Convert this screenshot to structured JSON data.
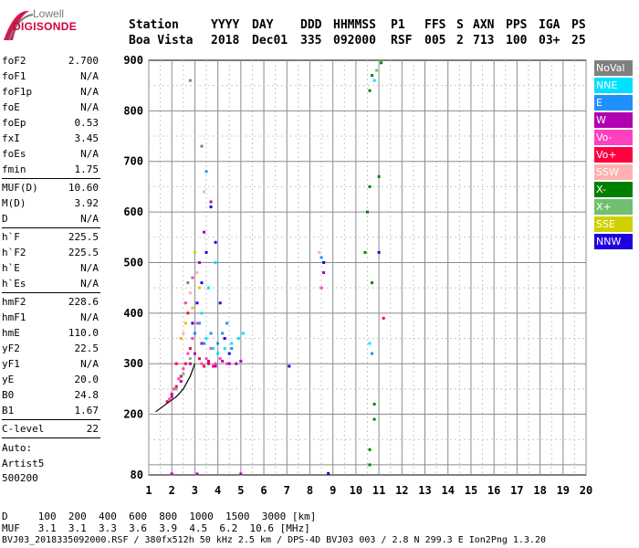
{
  "logo": {
    "brand_top": "Lowell",
    "brand_bottom": "DIGISONDE"
  },
  "header": {
    "columns": [
      {
        "label": "Station",
        "value": "Boa Vista"
      },
      {
        "label": "YYYY",
        "value": "2018"
      },
      {
        "label": "DAY",
        "value": "Dec01"
      },
      {
        "label": "DDD",
        "value": "335"
      },
      {
        "label": "HHMMSS",
        "value": "092000"
      },
      {
        "label": "P1",
        "value": "RSF"
      },
      {
        "label": "FFS",
        "value": "005"
      },
      {
        "label": "S",
        "value": "2"
      },
      {
        "label": "AXN",
        "value": "713"
      },
      {
        "label": "PPS",
        "value": "100"
      },
      {
        "label": "IGA",
        "value": "03+"
      },
      {
        "label": "PS",
        "value": "25"
      }
    ]
  },
  "parameters": {
    "group1": [
      {
        "name": "foF2",
        "value": "2.700"
      },
      {
        "name": "foF1",
        "value": "N/A"
      },
      {
        "name": "foF1p",
        "value": "N/A"
      },
      {
        "name": "foE",
        "value": "N/A"
      },
      {
        "name": "foEp",
        "value": "0.53"
      },
      {
        "name": "fxI",
        "value": "3.45"
      },
      {
        "name": "foEs",
        "value": "N/A"
      },
      {
        "name": "fmin",
        "value": "1.75"
      }
    ],
    "group2": [
      {
        "name": "MUF(D)",
        "value": "10.60"
      },
      {
        "name": "M(D)",
        "value": "3.92"
      },
      {
        "name": "D",
        "value": "N/A"
      }
    ],
    "group3": [
      {
        "name": "h`F",
        "value": "225.5"
      },
      {
        "name": "h`F2",
        "value": "225.5"
      },
      {
        "name": "h`E",
        "value": "N/A"
      },
      {
        "name": "h`Es",
        "value": "N/A"
      }
    ],
    "group4": [
      {
        "name": "hmF2",
        "value": "228.6"
      },
      {
        "name": "hmF1",
        "value": "N/A"
      },
      {
        "name": "hmE",
        "value": "110.0"
      },
      {
        "name": "yF2",
        "value": "22.5"
      },
      {
        "name": "yF1",
        "value": "N/A"
      },
      {
        "name": "yE",
        "value": "20.0"
      },
      {
        "name": "B0",
        "value": "24.8"
      },
      {
        "name": "B1",
        "value": "1.67"
      }
    ],
    "group5": [
      {
        "name": "C-level",
        "value": "22"
      }
    ]
  },
  "autoscaling": {
    "line1": "Auto:",
    "line2": "Artist5",
    "line3": "500200"
  },
  "legend": [
    {
      "label": "NoVal",
      "color": "#808080"
    },
    {
      "label": "NNE",
      "color": "#00e0ff"
    },
    {
      "label": "E",
      "color": "#1e90ff"
    },
    {
      "label": "W",
      "color": "#b000b0"
    },
    {
      "label": "Vo-",
      "color": "#ff40c0"
    },
    {
      "label": "Vo+",
      "color": "#ff0040"
    },
    {
      "label": "SSW",
      "color": "#ffb0b0"
    },
    {
      "label": "X-",
      "color": "#008000"
    },
    {
      "label": "X+",
      "color": "#70c070"
    },
    {
      "label": "SSE",
      "color": "#d0d000"
    },
    {
      "label": "NNW",
      "color": "#2000e0"
    }
  ],
  "chart_data": {
    "type": "scatter",
    "xlim": [
      1,
      20
    ],
    "ylim": [
      80,
      900
    ],
    "x_ticks": [
      "1",
      "2",
      "3",
      "4",
      "5",
      "6",
      "7",
      "8",
      "9",
      "10",
      "11",
      "12",
      "13",
      "14",
      "15",
      "16",
      "17",
      "18",
      "19",
      "20"
    ],
    "y_ticks": [
      "80",
      "200",
      "300",
      "400",
      "500",
      "600",
      "700",
      "800",
      "900"
    ],
    "grid": true,
    "legend_position": "right",
    "series": [
      {
        "name": "Vo-",
        "color": "#ff40c0",
        "points": [
          [
            1.9,
            230
          ],
          [
            2.1,
            250
          ],
          [
            2.3,
            270
          ],
          [
            2.5,
            290
          ],
          [
            2.7,
            320
          ],
          [
            2.9,
            350
          ],
          [
            3.1,
            380
          ],
          [
            3.3,
            300
          ],
          [
            3.5,
            310
          ],
          [
            3.7,
            330
          ],
          [
            3.9,
            300
          ],
          [
            4.1,
            310
          ],
          [
            4.4,
            300
          ],
          [
            2.6,
            420
          ],
          [
            2.9,
            470
          ],
          [
            8.5,
            450
          ]
        ]
      },
      {
        "name": "Vo+",
        "color": "#ff0040",
        "points": [
          [
            1.8,
            225
          ],
          [
            2.0,
            240
          ],
          [
            2.2,
            255
          ],
          [
            2.4,
            275
          ],
          [
            2.6,
            300
          ],
          [
            2.8,
            330
          ],
          [
            3.0,
            360
          ],
          [
            3.2,
            310
          ],
          [
            3.4,
            295
          ],
          [
            3.6,
            305
          ],
          [
            3.8,
            295
          ],
          [
            2.2,
            300
          ],
          [
            2.4,
            350
          ],
          [
            2.7,
            400
          ],
          [
            11.2,
            390
          ]
        ]
      },
      {
        "name": "W",
        "color": "#b000b0",
        "points": [
          [
            2.0,
            235
          ],
          [
            2.4,
            265
          ],
          [
            2.8,
            300
          ],
          [
            3.0,
            320
          ],
          [
            3.3,
            340
          ],
          [
            3.6,
            300
          ],
          [
            3.9,
            295
          ],
          [
            4.2,
            305
          ],
          [
            4.5,
            300
          ],
          [
            4.8,
            300
          ],
          [
            5.0,
            305
          ],
          [
            3.2,
            500
          ],
          [
            3.4,
            560
          ],
          [
            3.7,
            620
          ],
          [
            8.6,
            480
          ],
          [
            2.0,
            82
          ],
          [
            3.1,
            82
          ],
          [
            5.0,
            82
          ]
        ]
      },
      {
        "name": "NNW",
        "color": "#2000e0",
        "points": [
          [
            2.9,
            380
          ],
          [
            3.1,
            420
          ],
          [
            3.3,
            460
          ],
          [
            3.5,
            520
          ],
          [
            3.7,
            610
          ],
          [
            3.9,
            540
          ],
          [
            4.1,
            420
          ],
          [
            4.3,
            350
          ],
          [
            4.5,
            320
          ],
          [
            7.1,
            295
          ],
          [
            8.6,
            500
          ],
          [
            8.8,
            83
          ],
          [
            11.0,
            520
          ]
        ]
      },
      {
        "name": "NNE",
        "color": "#00e0ff",
        "points": [
          [
            3.3,
            400
          ],
          [
            3.5,
            350
          ],
          [
            3.8,
            330
          ],
          [
            4.0,
            320
          ],
          [
            4.3,
            330
          ],
          [
            4.6,
            340
          ],
          [
            4.9,
            350
          ],
          [
            5.1,
            360
          ],
          [
            3.6,
            450
          ],
          [
            3.9,
            500
          ],
          [
            10.6,
            340
          ],
          [
            10.8,
            860
          ]
        ]
      },
      {
        "name": "E",
        "color": "#1e90ff",
        "points": [
          [
            3.0,
            360
          ],
          [
            3.2,
            380
          ],
          [
            3.4,
            340
          ],
          [
            3.7,
            360
          ],
          [
            4.0,
            340
          ],
          [
            4.2,
            360
          ],
          [
            4.4,
            380
          ],
          [
            4.6,
            330
          ],
          [
            3.5,
            680
          ],
          [
            8.5,
            510
          ],
          [
            10.7,
            320
          ]
        ]
      },
      {
        "name": "X-",
        "color": "#008000",
        "points": [
          [
            10.4,
            520
          ],
          [
            10.5,
            600
          ],
          [
            10.6,
            650
          ],
          [
            10.7,
            460
          ],
          [
            10.8,
            220
          ],
          [
            10.8,
            190
          ],
          [
            10.6,
            100
          ],
          [
            10.6,
            130
          ],
          [
            10.6,
            840
          ],
          [
            10.7,
            870
          ],
          [
            11.0,
            670
          ],
          [
            11.1,
            895
          ]
        ]
      },
      {
        "name": "X+",
        "color": "#70c070",
        "points": [
          [
            2.2,
            250
          ],
          [
            2.5,
            280
          ],
          [
            2.8,
            310
          ],
          [
            10.9,
            880
          ]
        ]
      },
      {
        "name": "SSE",
        "color": "#d0d000",
        "points": [
          [
            2.4,
            350
          ],
          [
            2.6,
            380
          ],
          [
            2.9,
            410
          ],
          [
            3.2,
            450
          ],
          [
            3.0,
            520
          ]
        ]
      },
      {
        "name": "SSW",
        "color": "#ffb0b0",
        "points": [
          [
            2.5,
            360
          ],
          [
            2.8,
            440
          ],
          [
            3.1,
            480
          ],
          [
            3.4,
            640
          ],
          [
            8.4,
            520
          ]
        ]
      },
      {
        "name": "NoVal",
        "color": "#808080",
        "points": [
          [
            2.8,
            860
          ],
          [
            3.3,
            730
          ],
          [
            2.7,
            460
          ]
        ]
      }
    ],
    "trace": [
      [
        1.3,
        205
      ],
      [
        1.6,
        215
      ],
      [
        1.9,
        225
      ],
      [
        2.2,
        235
      ],
      [
        2.5,
        250
      ],
      [
        2.8,
        275
      ],
      [
        3.0,
        300
      ]
    ]
  },
  "bottom_table": {
    "row1_label": "D",
    "row1_values": "100  200  400  600  800  1000  1500  3000",
    "row1_unit": "[km]",
    "row2_label": "MUF",
    "row2_values": "3.1  3.1  3.3  3.6  3.9  4.5  6.2  10.6",
    "row2_unit": "[MHz]"
  },
  "footer": "BVJ03_2018335092000.RSF / 380fx512h 50 kHz 2.5 km / DPS-4D BVJ03 003 / 2.8 N 299.3 E Ion2Png 1.3.20"
}
